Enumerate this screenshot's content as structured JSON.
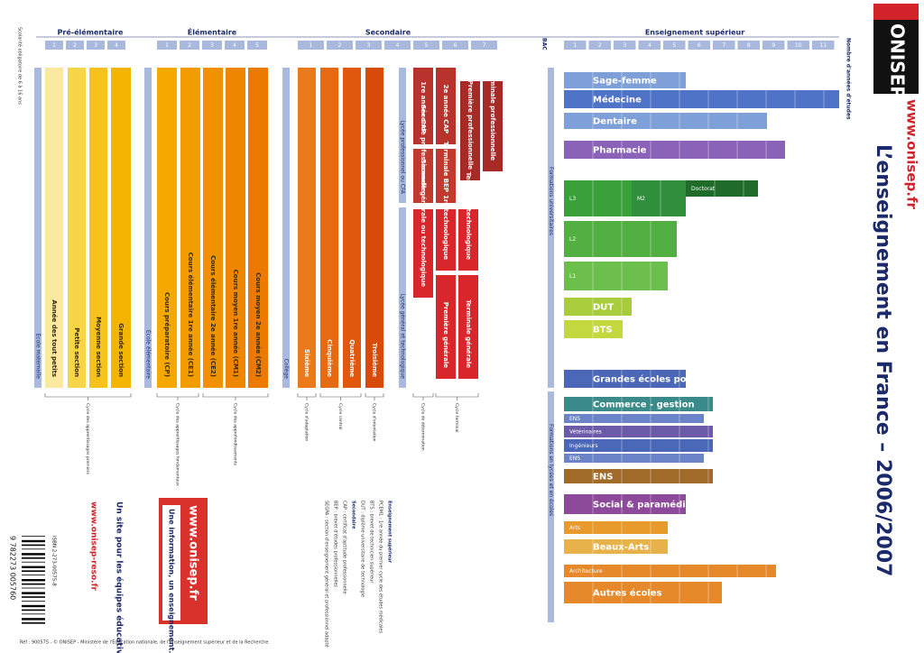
{
  "header": {
    "title": "L’enseignement en France – 2006/2007",
    "site": "www.onisep.fr",
    "logo": "ONISEP"
  },
  "sections": [
    "Pré-élémentaire",
    "Élémentaire",
    "Secondaire",
    "Enseignement supérieur"
  ],
  "years": {
    "label": "Nombre d'années d'études",
    "bac": "BAC",
    "pre": [
      1,
      2,
      3,
      4
    ],
    "elem": [
      1,
      2,
      3,
      4,
      5
    ],
    "sec": [
      1,
      2,
      3,
      4,
      5,
      6,
      7
    ],
    "sup": [
      1,
      2,
      3,
      4,
      5,
      6,
      7,
      8,
      9,
      10,
      11
    ]
  },
  "columns": [
    {
      "label": "École maternelle",
      "color": "#aab9de"
    },
    {
      "label": "Année des tout petits",
      "color": "#fbe9a0"
    },
    {
      "label": "Petite section",
      "color": "#f8d448"
    },
    {
      "label": "Moyenne section",
      "color": "#f6c21b"
    },
    {
      "label": "Grande section",
      "color": "#f3b500"
    },
    {
      "label": "École élémentaire",
      "color": "#aab9de"
    },
    {
      "label": "Cours préparatoire (CP)",
      "color": "#f5a800"
    },
    {
      "label": "Cours élémentaire 1re année (CE1)",
      "color": "#f39c00"
    },
    {
      "label": "Cours élémentaire 2e année (CE2)",
      "color": "#f19100"
    },
    {
      "label": "Cours moyen 1re année (CM1)",
      "color": "#ef8600"
    },
    {
      "label": "Cours moyen 2e année (CM2)",
      "color": "#ec7a00"
    },
    {
      "label": "Collège",
      "color": "#aab9de"
    },
    {
      "label": "Sixième",
      "color": "#ea7a1a"
    },
    {
      "label": "Cinquième",
      "color": "#e66a12"
    },
    {
      "label": "Quatrième",
      "color": "#e0580e"
    },
    {
      "label": "Troisième",
      "color": "#d84a0a"
    },
    {
      "label": "Lycée professionnel ou CFA",
      "color": "#aab9de"
    },
    {
      "label": "Lycée général et technologique",
      "color": "#aab9de"
    },
    {
      "label": "1re année CAP",
      "color": "#b8332b"
    },
    {
      "label": "2e année CAP",
      "color": "#b8332b"
    },
    {
      "label": "Seconde professionnelle",
      "color": "#c23a2e"
    },
    {
      "label": "Terminale BEP",
      "color": "#c23a2e"
    },
    {
      "label": "Première professionnelle",
      "color": "#a82a26"
    },
    {
      "label": "Terminale professionnelle",
      "color": "#a82a26"
    },
    {
      "label": "Seconde générale ou technologique",
      "color": "#d8262a"
    },
    {
      "label": "1re technologique",
      "color": "#d8262a"
    },
    {
      "label": "Terminale technologique",
      "color": "#d8262a"
    },
    {
      "label": "Première générale",
      "color": "#d8262a"
    },
    {
      "label": "Terminale générale",
      "color": "#d8262a"
    }
  ],
  "cycles": [
    "Cycle des apprentissages premiers",
    "Cycle des apprentissages fondamentaux",
    "Cycle des approfondissements",
    "Cycle d'adaptation",
    "Cycle central",
    "Cycle d'orientation",
    "Cycle de détermination",
    "Cycle terminal"
  ],
  "branches": [
    "Formations universitaires",
    "Formations en lycées et en écoles"
  ],
  "higher": [
    {
      "label": "Sage-femme",
      "color": "#7f9fd8"
    },
    {
      "label": "Médecine",
      "color": "#4f73c6"
    },
    {
      "label": "Dentaire",
      "color": "#7f9fd8"
    },
    {
      "label": "Pharmacie",
      "color": "#8a63b8"
    },
    {
      "label": "Doctorat",
      "color": "#1f6b2a"
    },
    {
      "label": "M2",
      "color": "#2f8f3a"
    },
    {
      "label": "L3",
      "color": "#3aa03a"
    },
    {
      "label": "L2",
      "color": "#52b043"
    },
    {
      "label": "L1",
      "color": "#6cbf4a"
    },
    {
      "label": "DUT",
      "color": "#a8cc3c"
    },
    {
      "label": "BTS",
      "color": "#c2d83c"
    },
    {
      "label": "Grandes écoles post-bac",
      "color": "#4a67b8"
    },
    {
      "label": "Commerce - gestion",
      "color": "#3a8a8a"
    },
    {
      "label": "ENS",
      "color": "#6b84c8"
    },
    {
      "label": "Vétérinaires",
      "color": "#6b5aa8"
    },
    {
      "label": "Ingénieurs",
      "color": "#4a67b8"
    },
    {
      "label": "ENS",
      "color": "#6b84c8"
    },
    {
      "label": "ENS",
      "color": "#a06a28"
    },
    {
      "label": "Social & paramédical",
      "color": "#8e4a9a"
    },
    {
      "label": "Arts",
      "color": "#e89a2a"
    },
    {
      "label": "Beaux-Arts",
      "color": "#e8b24a"
    },
    {
      "label": "Architecture",
      "color": "#e6892a"
    },
    {
      "label": "Autres écoles",
      "color": "#e6892a"
    }
  ],
  "abbreviations": [
    "Enseignement supérieur",
    "PCEM1 : 1re année du premier cycle des études médicales",
    "BTS : brevet de technicien supérieur",
    "DUT : diplôme universitaire de technologie",
    "Secondaire",
    "CAP : certificat d'aptitude professionnelle",
    "BEP : brevet d'études professionnelles",
    "SEGPA : section d'enseignement général et professionnel adapté"
  ],
  "promo": {
    "box_site": "www.onisep.fr",
    "box_slogan": "Une information, un enseignement...",
    "reso_title": "Un site pour les équipes éducatives",
    "reso_site": "www.onisep-reso.fr"
  },
  "side_note": "Scolarité obligatoire de 6 à 16 ans",
  "isbn": "ISBN 2-273-00575-8",
  "barcode": "9 782273 005760",
  "footer": "Réf : 900575 - © ONISEP - Ministère de l'Éducation nationale, de l'Enseignement supérieur et de la Recherche"
}
